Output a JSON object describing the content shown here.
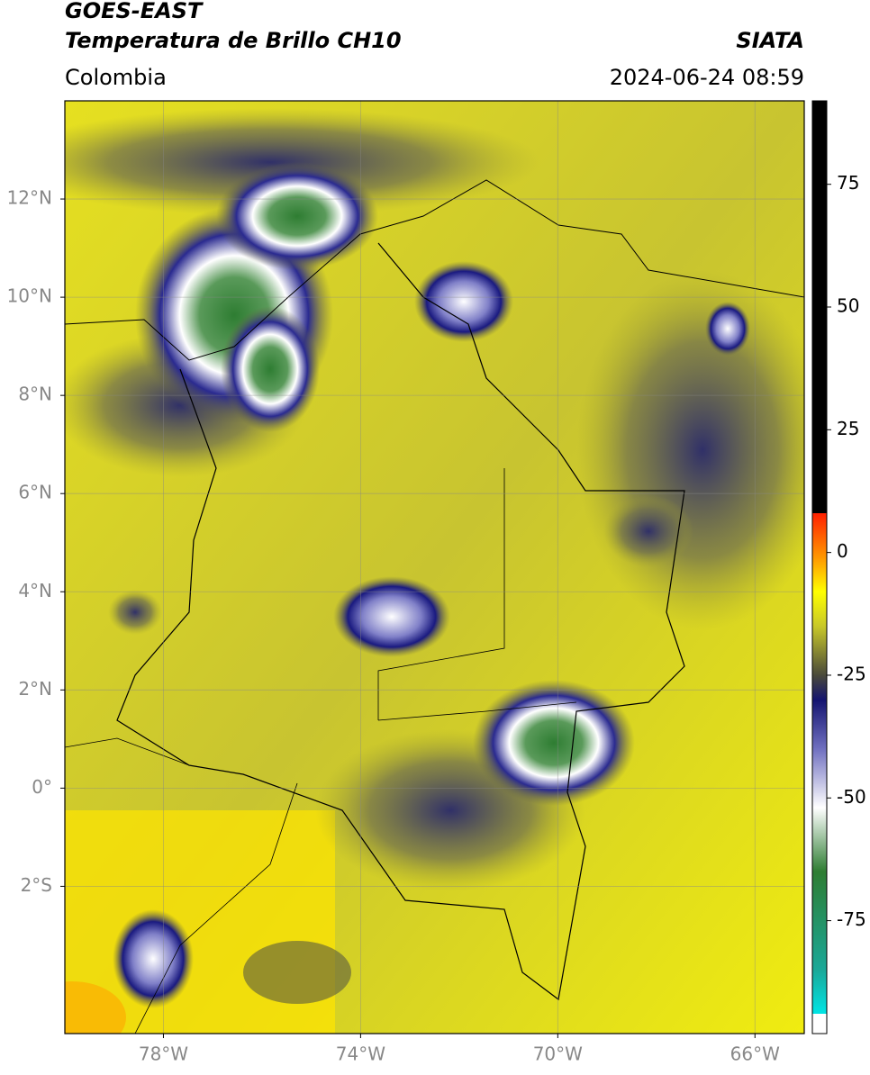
{
  "header": {
    "title": "GOES-EAST",
    "subtitle": "Temperatura de Brillo CH10",
    "source": "SIATA",
    "region": "Colombia",
    "datetime": "2024-06-24 08:59"
  },
  "map": {
    "xlim": [
      -80,
      -65
    ],
    "ylim": [
      -5,
      14
    ],
    "xticks": [
      {
        "value": -78,
        "label": "78°W"
      },
      {
        "value": -74,
        "label": "74°W"
      },
      {
        "value": -70,
        "label": "70°W"
      },
      {
        "value": -66,
        "label": "66°W"
      }
    ],
    "yticks": [
      {
        "value": 12,
        "label": "12°N"
      },
      {
        "value": 10,
        "label": "10°N"
      },
      {
        "value": 8,
        "label": "8°N"
      },
      {
        "value": 6,
        "label": "6°N"
      },
      {
        "value": 4,
        "label": "4°N"
      },
      {
        "value": 2,
        "label": "2°N"
      },
      {
        "value": 0,
        "label": "0°"
      },
      {
        "value": -2,
        "label": "2°S"
      }
    ]
  },
  "colorbar": {
    "lim": [
      -98,
      92
    ],
    "ticks": [
      75,
      50,
      25,
      0,
      -25,
      -50,
      -75
    ],
    "colormap": [
      {
        "value": -98,
        "color": "#ffffff"
      },
      {
        "value": -94,
        "color": "#ffffff"
      },
      {
        "value": -94,
        "color": "#00e5e5"
      },
      {
        "value": -85,
        "color": "#1aa898"
      },
      {
        "value": -65,
        "color": "#2e7d32"
      },
      {
        "value": -52,
        "color": "#ffffff"
      },
      {
        "value": -40,
        "color": "#7070c0"
      },
      {
        "value": -30,
        "color": "#141470"
      },
      {
        "value": -25,
        "color": "#4a4a3a"
      },
      {
        "value": -15,
        "color": "#c8c828"
      },
      {
        "value": -8,
        "color": "#ffff00"
      },
      {
        "value": -2,
        "color": "#ffa500"
      },
      {
        "value": 8,
        "color": "#ff2000"
      },
      {
        "value": 8,
        "color": "#000000"
      },
      {
        "value": 92,
        "color": "#000000"
      }
    ]
  }
}
